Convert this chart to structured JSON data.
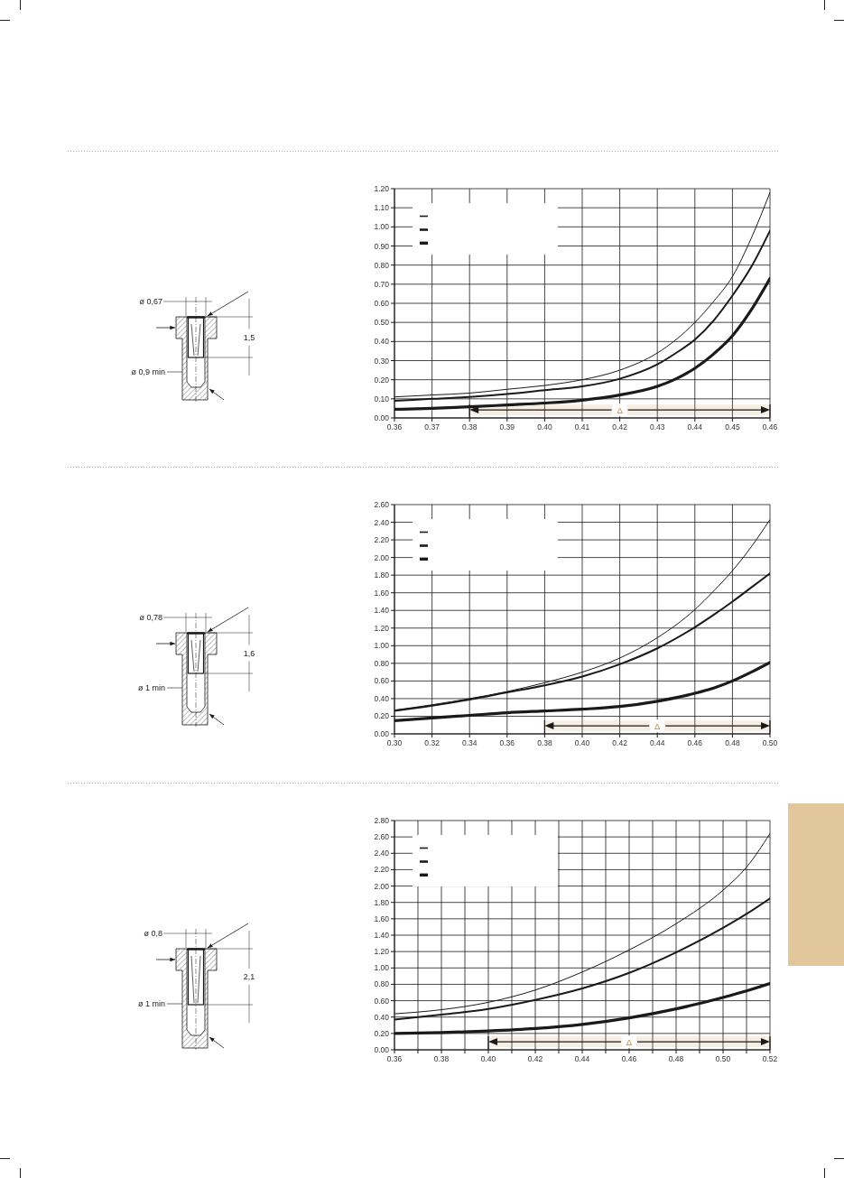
{
  "chart_data": [
    {
      "type": "line",
      "x": [
        0.36,
        0.37,
        0.38,
        0.39,
        0.4,
        0.41,
        0.42,
        0.43,
        0.435,
        0.44,
        0.445,
        0.45,
        0.455,
        0.46
      ],
      "series": [
        {
          "color": "#1a1a1a",
          "values": [
            0.11,
            0.12,
            0.13,
            0.15,
            0.17,
            0.2,
            0.25,
            0.34,
            0.41,
            0.5,
            0.61,
            0.74,
            0.94,
            1.18
          ]
        },
        {
          "color": "#1a1a1a",
          "values": [
            0.09,
            0.1,
            0.11,
            0.125,
            0.145,
            0.165,
            0.205,
            0.28,
            0.34,
            0.41,
            0.51,
            0.64,
            0.79,
            0.98
          ]
        },
        {
          "color": "#1a1a1a",
          "values": [
            0.045,
            0.05,
            0.058,
            0.068,
            0.078,
            0.093,
            0.12,
            0.165,
            0.205,
            0.26,
            0.335,
            0.43,
            0.565,
            0.73
          ]
        }
      ],
      "xlim": [
        0.36,
        0.46
      ],
      "xticks": [
        {
          "value": 0.36,
          "label": "0.36"
        },
        {
          "value": 0.37,
          "label": "0.37"
        },
        {
          "value": 0.38,
          "label": "0.38"
        },
        {
          "value": 0.39,
          "label": "0.39"
        },
        {
          "value": 0.4,
          "label": "0.40"
        },
        {
          "value": 0.41,
          "label": "0.41"
        },
        {
          "value": 0.42,
          "label": "0.42"
        },
        {
          "value": 0.43,
          "label": "0.43"
        },
        {
          "value": 0.44,
          "label": "0.44"
        },
        {
          "value": 0.45,
          "label": "0.45"
        },
        {
          "value": 0.46,
          "label": "0.46"
        }
      ],
      "ylim": [
        0,
        1.2
      ],
      "yticks": [
        {
          "value": 0,
          "label": "0.00"
        },
        {
          "value": 0.1,
          "label": "0.10"
        },
        {
          "value": 0.2,
          "label": "0.20"
        },
        {
          "value": 0.3,
          "label": "0.30"
        },
        {
          "value": 0.4,
          "label": "0.40"
        },
        {
          "value": 0.5,
          "label": "0.50"
        },
        {
          "value": 0.6,
          "label": "0.60"
        },
        {
          "value": 0.7,
          "label": "0.70"
        },
        {
          "value": 0.8,
          "label": "0.80"
        },
        {
          "value": 0.9,
          "label": "0.90"
        },
        {
          "value": 1.0,
          "label": "1.00"
        },
        {
          "value": 1.1,
          "label": "1.10"
        },
        {
          "value": 1.2,
          "label": "1.20"
        }
      ],
      "bands": [
        {
          "axis": "x",
          "from": 0.38,
          "to": 0.46,
          "label": "Δ"
        }
      ],
      "annotations": [
        "ø 0,67",
        "1,5",
        "ø 0,9 min"
      ],
      "grid": true,
      "marker": "none"
    },
    {
      "type": "line",
      "x": [
        0.3,
        0.32,
        0.34,
        0.36,
        0.38,
        0.4,
        0.42,
        0.44,
        0.46,
        0.47,
        0.48,
        0.49,
        0.5
      ],
      "series": [
        {
          "color": "#1a1a1a",
          "values": [
            0.27,
            0.33,
            0.4,
            0.48,
            0.58,
            0.7,
            0.86,
            1.09,
            1.41,
            1.62,
            1.85,
            2.12,
            2.43
          ]
        },
        {
          "color": "#1a1a1a",
          "values": [
            0.26,
            0.32,
            0.39,
            0.47,
            0.55,
            0.65,
            0.79,
            0.97,
            1.21,
            1.35,
            1.5,
            1.66,
            1.82
          ]
        },
        {
          "color": "#1a1a1a",
          "values": [
            0.15,
            0.18,
            0.21,
            0.24,
            0.26,
            0.28,
            0.31,
            0.37,
            0.46,
            0.52,
            0.6,
            0.7,
            0.81
          ]
        }
      ],
      "xlim": [
        0.3,
        0.5
      ],
      "xticks": [
        {
          "value": 0.3,
          "label": "0.30"
        },
        {
          "value": 0.32,
          "label": "0.32"
        },
        {
          "value": 0.34,
          "label": "0.34"
        },
        {
          "value": 0.36,
          "label": "0.36"
        },
        {
          "value": 0.38,
          "label": "0.38"
        },
        {
          "value": 0.4,
          "label": "0.40"
        },
        {
          "value": 0.42,
          "label": "0.42"
        },
        {
          "value": 0.44,
          "label": "0.44"
        },
        {
          "value": 0.46,
          "label": "0.46"
        },
        {
          "value": 0.48,
          "label": "0.48"
        },
        {
          "value": 0.5,
          "label": "0.50"
        }
      ],
      "ylim": [
        0,
        2.6
      ],
      "yticks": [
        {
          "value": 0,
          "label": "0.00"
        },
        {
          "value": 0.2,
          "label": "0.20"
        },
        {
          "value": 0.4,
          "label": "0.40"
        },
        {
          "value": 0.6,
          "label": "0.60"
        },
        {
          "value": 0.8,
          "label": "0.80"
        },
        {
          "value": 1.0,
          "label": "1.00"
        },
        {
          "value": 1.2,
          "label": "1.20"
        },
        {
          "value": 1.4,
          "label": "1.40"
        },
        {
          "value": 1.6,
          "label": "1.60"
        },
        {
          "value": 1.8,
          "label": "1.80"
        },
        {
          "value": 2.0,
          "label": "2.00"
        },
        {
          "value": 2.2,
          "label": "2.20"
        },
        {
          "value": 2.4,
          "label": "2.40"
        },
        {
          "value": 2.6,
          "label": "2.60"
        }
      ],
      "bands": [
        {
          "axis": "x",
          "from": 0.38,
          "to": 0.5,
          "label": "Δ"
        }
      ],
      "annotations": [
        "ø 0,78",
        "1,6",
        "ø 1 min"
      ],
      "grid": true,
      "marker": "none"
    },
    {
      "type": "line",
      "x": [
        0.36,
        0.38,
        0.4,
        0.42,
        0.44,
        0.46,
        0.48,
        0.5,
        0.51,
        0.52
      ],
      "series": [
        {
          "color": "#1a1a1a",
          "values": [
            0.44,
            0.49,
            0.58,
            0.73,
            0.95,
            1.22,
            1.54,
            1.95,
            2.23,
            2.64
          ]
        },
        {
          "color": "#1a1a1a",
          "values": [
            0.37,
            0.43,
            0.5,
            0.61,
            0.75,
            0.94,
            1.19,
            1.49,
            1.66,
            1.85
          ]
        },
        {
          "color": "#1a1a1a",
          "values": [
            0.2,
            0.21,
            0.23,
            0.26,
            0.31,
            0.39,
            0.5,
            0.64,
            0.72,
            0.81
          ]
        }
      ],
      "xlim": [
        0.36,
        0.52
      ],
      "xticks": [
        {
          "value": 0.36,
          "label": "0.36"
        },
        {
          "value": 0.37,
          "label": null
        },
        {
          "value": 0.38,
          "label": "0.38"
        },
        {
          "value": 0.39,
          "label": null
        },
        {
          "value": 0.4,
          "label": "0.40"
        },
        {
          "value": 0.41,
          "label": null
        },
        {
          "value": 0.42,
          "label": "0.42"
        },
        {
          "value": 0.43,
          "label": null
        },
        {
          "value": 0.44,
          "label": "0.44"
        },
        {
          "value": 0.45,
          "label": null
        },
        {
          "value": 0.46,
          "label": "0.46"
        },
        {
          "value": 0.47,
          "label": null
        },
        {
          "value": 0.48,
          "label": "0.48"
        },
        {
          "value": 0.49,
          "label": null
        },
        {
          "value": 0.5,
          "label": "0.50"
        },
        {
          "value": 0.51,
          "label": null
        },
        {
          "value": 0.52,
          "label": "0.52"
        }
      ],
      "ylim": [
        0,
        2.8
      ],
      "yticks": [
        {
          "value": 0,
          "label": "0.00"
        },
        {
          "value": 0.2,
          "label": "0.20"
        },
        {
          "value": 0.4,
          "label": "0.40"
        },
        {
          "value": 0.6,
          "label": "0.60"
        },
        {
          "value": 0.8,
          "label": "0.80"
        },
        {
          "value": 1.0,
          "label": "1.00"
        },
        {
          "value": 1.2,
          "label": "1.20"
        },
        {
          "value": 1.4,
          "label": "1.40"
        },
        {
          "value": 1.6,
          "label": "1.60"
        },
        {
          "value": 1.8,
          "label": "1.80"
        },
        {
          "value": 2.0,
          "label": "2.00"
        },
        {
          "value": 2.2,
          "label": "2.20"
        },
        {
          "value": 2.4,
          "label": "2.40"
        },
        {
          "value": 2.6,
          "label": "2.60"
        },
        {
          "value": 2.8,
          "label": "2.80"
        }
      ],
      "bands": [
        {
          "axis": "x",
          "from": 0.4,
          "to": 0.52,
          "label": "Δ"
        }
      ],
      "annotations": [
        "ø 0,8",
        "2,1",
        "ø 1 min"
      ],
      "grid": true,
      "marker": "none"
    }
  ]
}
